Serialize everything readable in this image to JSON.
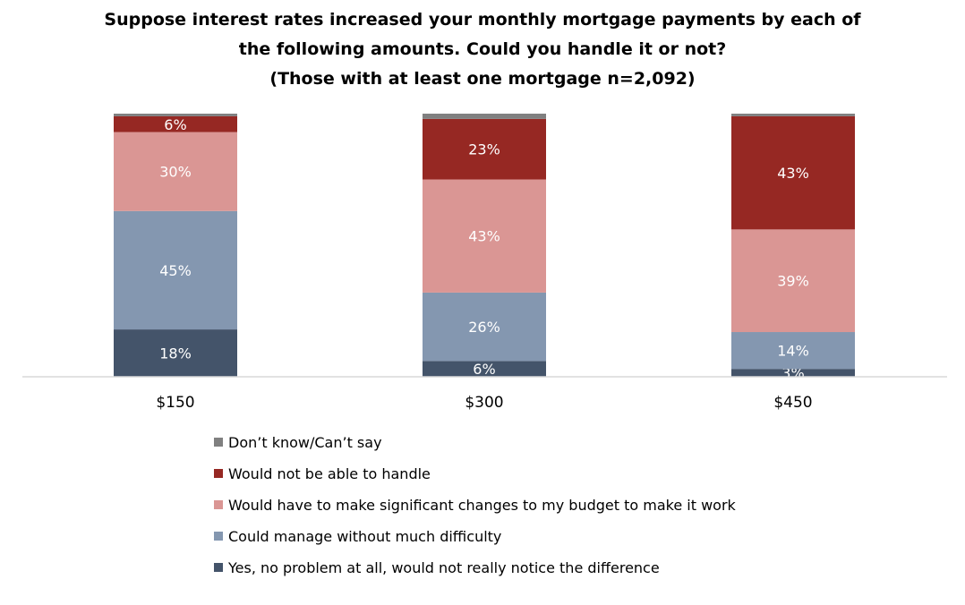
{
  "chart_data": {
    "type": "bar",
    "stacked": true,
    "title": [
      "Suppose interest rates increased your monthly mortgage payments by each of",
      "the following amounts. Could you handle it or not?",
      "(Those with at least one mortgage n=2,092)"
    ],
    "categories": [
      "$150",
      "$300",
      "$450"
    ],
    "series": [
      {
        "name": "Yes, no problem at all, would not really notice the difference",
        "color": "#44546a",
        "values": [
          18,
          6,
          3
        ],
        "labels": [
          "18%",
          "6%",
          "3%"
        ]
      },
      {
        "name": "Could manage without much difficulty",
        "color": "#8497b0",
        "values": [
          45,
          26,
          14
        ],
        "labels": [
          "45%",
          "26%",
          "14%"
        ]
      },
      {
        "name": "Would have to make significant changes to my budget to make it work",
        "color": "#da9694",
        "values": [
          30,
          43,
          39
        ],
        "labels": [
          "30%",
          "43%",
          "39%"
        ]
      },
      {
        "name": "Would not be able to handle",
        "color": "#962823",
        "values": [
          6,
          23,
          43
        ],
        "labels": [
          "6%",
          "23%",
          "43%"
        ]
      },
      {
        "name": "Don’t know/Can’t say",
        "color": "#808080",
        "values": [
          1,
          2,
          1
        ],
        "labels": [
          "",
          "",
          ""
        ]
      }
    ],
    "ylim": [
      0,
      100
    ],
    "grid": false,
    "legend_position": "bottom",
    "label_color": "#ffffff"
  }
}
